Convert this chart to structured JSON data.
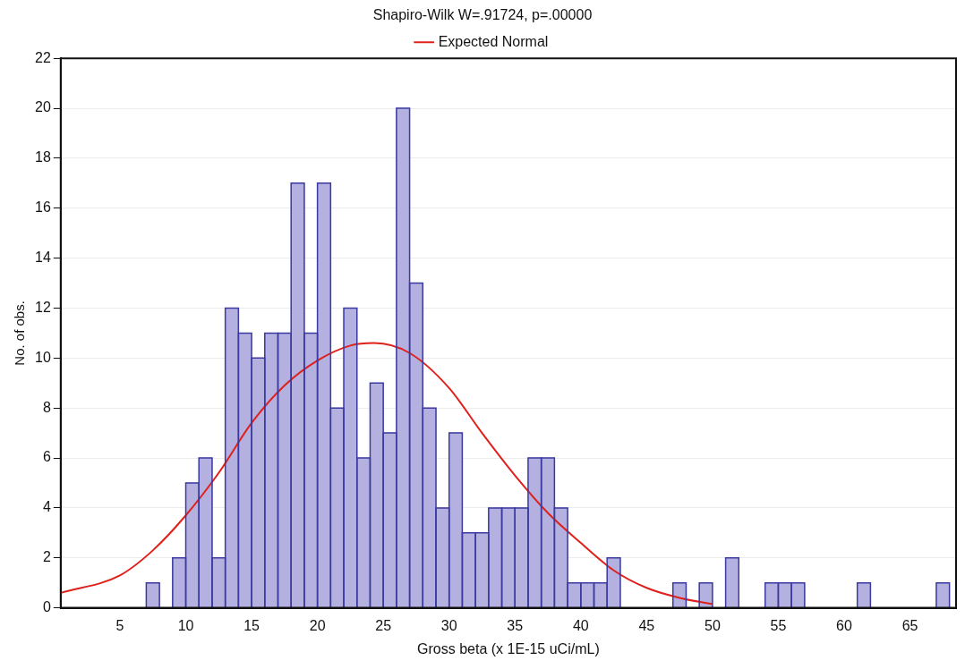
{
  "chart_data": {
    "type": "histogram",
    "title": "Shapiro-Wilk W=.91724, p=.00000",
    "xlabel": "Gross beta (x 1E-15 uCi/mL)",
    "ylabel": "No. of obs.",
    "bins": [
      7,
      8,
      9,
      10,
      11,
      12,
      13,
      14,
      15,
      16,
      17,
      18,
      19,
      20,
      21,
      22,
      23,
      24,
      25,
      26,
      27,
      28,
      29,
      30,
      31,
      32,
      33,
      34,
      35,
      36,
      37,
      38,
      39,
      40,
      41,
      42,
      43,
      44,
      45,
      46,
      47,
      48,
      49,
      50,
      51,
      52,
      53,
      54,
      55,
      56,
      57,
      58,
      59,
      60,
      61,
      62,
      63,
      64,
      65,
      66,
      67,
      68
    ],
    "values": [
      1,
      0,
      2,
      5,
      6,
      2,
      12,
      11,
      10,
      11,
      11,
      17,
      11,
      17,
      8,
      12,
      6,
      9,
      7,
      20,
      13,
      8,
      4,
      7,
      3,
      3,
      4,
      4,
      4,
      6,
      6,
      4,
      1,
      1,
      1,
      2,
      0,
      0,
      0,
      0,
      1,
      0,
      1,
      0,
      2,
      0,
      0,
      1,
      1,
      1,
      0,
      0,
      0,
      0,
      1,
      0,
      0,
      0,
      0,
      0,
      1
    ],
    "color": "#b4b0e0",
    "series": [
      {
        "type": "line",
        "name": "Expected Normal",
        "color": "#e0201b",
        "x": [
          0.5,
          5,
          7.5,
          10,
          12.5,
          15,
          17.5,
          20,
          22.5,
          24.3,
          27,
          30,
          32.5,
          35,
          37.5,
          40,
          42.5,
          45,
          47.5,
          50
        ],
        "values": [
          0.6,
          1.3,
          2.3,
          3.7,
          5.4,
          7.4,
          8.9,
          9.9,
          10.5,
          10.6,
          10.2,
          8.8,
          7,
          5.3,
          3.8,
          2.6,
          1.5,
          0.8,
          0.4,
          0.15
        ]
      }
    ],
    "xlim": [
      0.5,
      68.5
    ],
    "xticks": [
      5,
      10,
      15,
      20,
      25,
      30,
      35,
      40,
      45,
      50,
      55,
      60,
      65
    ],
    "ylim": [
      0,
      22
    ],
    "yticks": [
      0,
      2,
      4,
      6,
      8,
      10,
      12,
      14,
      16,
      18,
      20,
      22
    ],
    "grid": "y",
    "legend": "top",
    "marker": "none",
    "line_style": "solid"
  }
}
